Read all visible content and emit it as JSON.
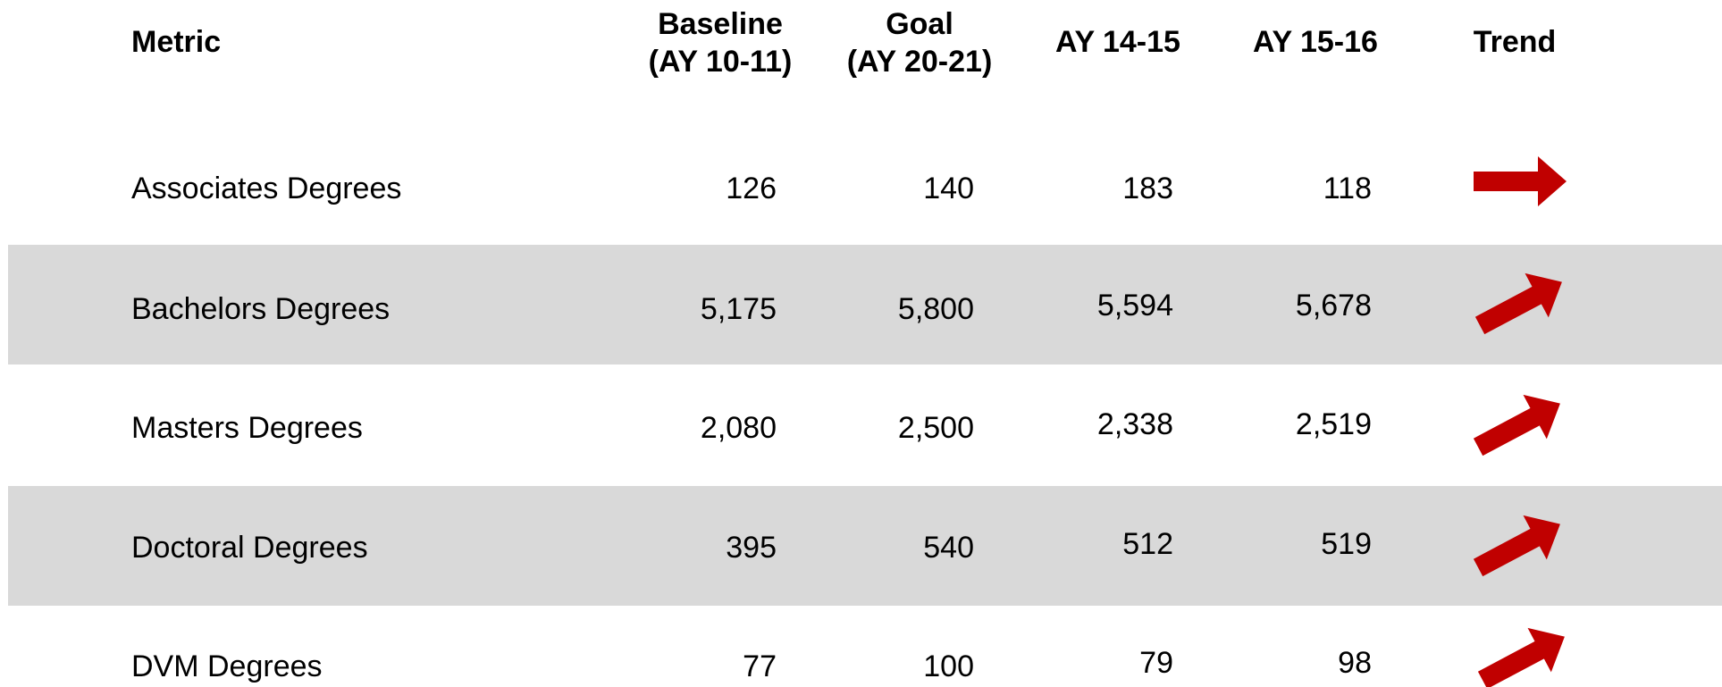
{
  "table": {
    "header": [
      "Metric",
      "Baseline\n(AY 10-11)",
      "Goal\n(AY 20-21)",
      "AY 14-15",
      "AY 15-16",
      "Trend"
    ],
    "rows": [
      [
        "Associates Degrees",
        "126",
        "140",
        "183",
        "118"
      ],
      [
        "Bachelors Degrees",
        "5,175",
        "5,800",
        "5,594",
        "5,678"
      ],
      [
        "Masters Degrees",
        "2,080",
        "2,500",
        "2,338",
        "2,519"
      ],
      [
        "Doctoral Degrees",
        "395",
        "540",
        "512",
        "519"
      ],
      [
        "DVM Degrees",
        "77",
        "100",
        "79",
        "98"
      ]
    ]
  }
}
